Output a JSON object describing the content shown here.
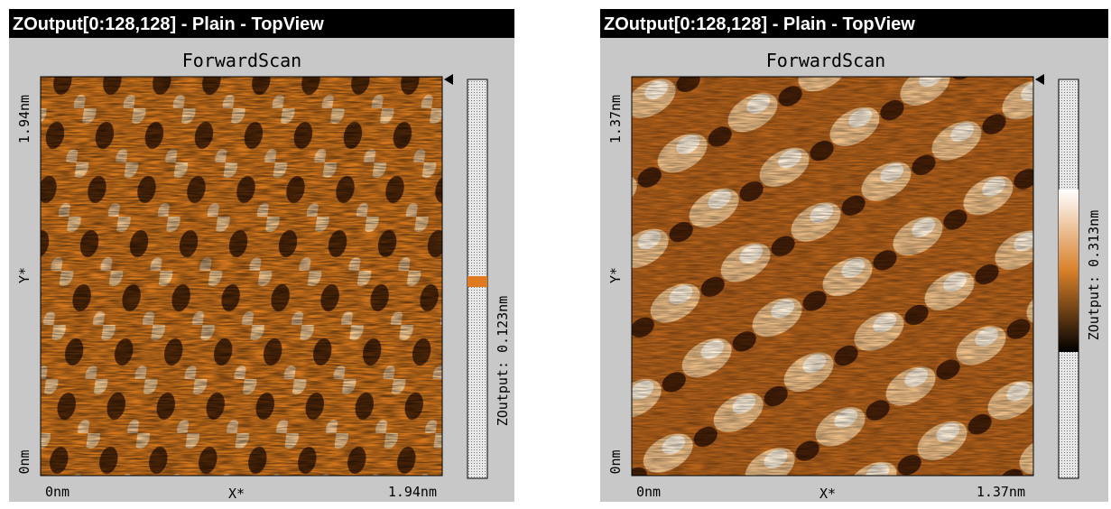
{
  "panels": [
    {
      "title": "ZOutput[0:128,128] - Plain - TopView",
      "subtitle": "ForwardScan",
      "y_axis": {
        "top": "1.94nm",
        "label": "Y*",
        "bottom": "0nm"
      },
      "x_axis": {
        "left": "0nm",
        "label": "X*",
        "right": "1.94nm"
      },
      "colorbar_label": "ZOutput: 0.123nm"
    },
    {
      "title": "ZOutput[0:128,128] - Plain - TopView",
      "subtitle": "ForwardScan",
      "y_axis": {
        "top": "1.37nm",
        "label": "Y*",
        "bottom": "0nm"
      },
      "x_axis": {
        "left": "0nm",
        "label": "X*",
        "right": "1.37nm"
      },
      "colorbar_label": "ZOutput: 0.313nm"
    }
  ]
}
